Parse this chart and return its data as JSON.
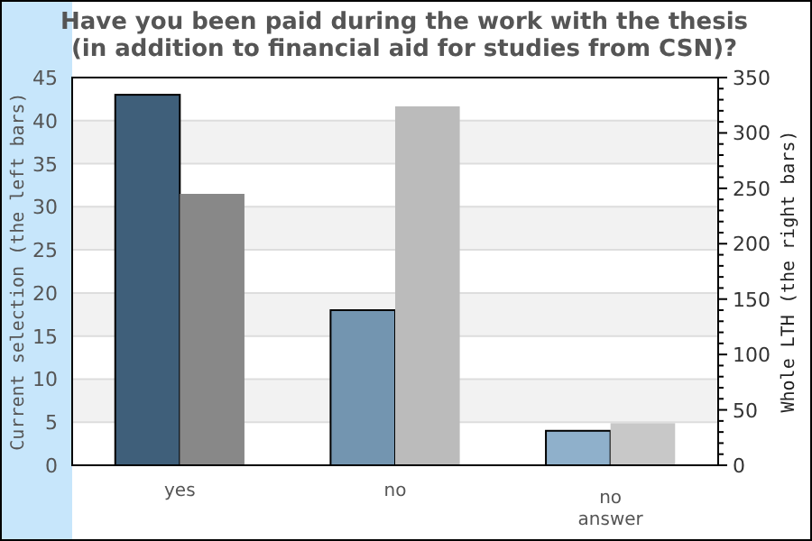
{
  "chart_data": {
    "type": "bar",
    "title": "Have you been paid during the work with the thesis\n(in addition to financial aid for studies from CSN)?",
    "ylabel": "Current selection (the left bars)",
    "y2label": "Whole LTH (the right bars)",
    "categories": [
      "yes",
      "no",
      "no\nanswer"
    ],
    "series": [
      {
        "colors": [
          "#3f5f7a",
          "#7395b0",
          "#8fb0cb"
        ],
        "values": [
          43,
          18,
          4
        ]
      },
      {
        "colors": [
          "#888888",
          "#bbbbbb",
          "#c8c8c8"
        ],
        "values": [
          245,
          324,
          38
        ],
        "axis": "y2"
      }
    ],
    "ylim": [
      0,
      45
    ],
    "yticks": [
      0,
      5,
      10,
      15,
      20,
      25,
      30,
      35,
      40,
      45
    ],
    "y2lim": [
      0,
      350
    ],
    "y2ticks": [
      0,
      {
        "value": 10,
        "label": null
      },
      {
        "value": 20,
        "label": null
      },
      {
        "value": 30,
        "label": null
      },
      {
        "value": 40,
        "label": null
      },
      50,
      {
        "value": 60,
        "label": null
      },
      {
        "value": 70,
        "label": null
      },
      {
        "value": 80,
        "label": null
      },
      {
        "value": 90,
        "label": null
      },
      100,
      {
        "value": 110,
        "label": null
      },
      {
        "value": 120,
        "label": null
      },
      {
        "value": 130,
        "label": null
      },
      {
        "value": 140,
        "label": null
      },
      150,
      {
        "value": 160,
        "label": null
      },
      {
        "value": 170,
        "label": null
      },
      {
        "value": 180,
        "label": null
      },
      {
        "value": 190,
        "label": null
      },
      200,
      {
        "value": 210,
        "label": null
      },
      {
        "value": 220,
        "label": null
      },
      {
        "value": 230,
        "label": null
      },
      {
        "value": 240,
        "label": null
      },
      250,
      {
        "value": 260,
        "label": null
      },
      {
        "value": 270,
        "label": null
      },
      {
        "value": 280,
        "label": null
      },
      {
        "value": 290,
        "label": null
      },
      300,
      {
        "value": 310,
        "label": null
      },
      {
        "value": 320,
        "label": null
      },
      {
        "value": 330,
        "label": null
      },
      {
        "value": 340,
        "label": null
      },
      350
    ],
    "grid": "y"
  }
}
